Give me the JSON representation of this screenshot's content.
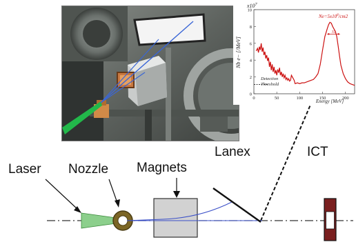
{
  "labels": {
    "laser": "Laser",
    "nozzle": "Nozzle",
    "magnets": "Magnets",
    "lanex": "Lanex",
    "ict": "ICT"
  },
  "inset_chart": {
    "exponent_label": "x10",
    "exponent_power": "7",
    "annotation": "Ne=5x10",
    "annotation_power": "8",
    "annotation_unit": "/cm2",
    "width_label": "32",
    "threshold_label_1": "Detection",
    "threshold_label_2": "Threshold"
  },
  "chart_data": {
    "type": "line",
    "xlabel": "Energy [MeV]",
    "ylabel": "Nb e− [/MeV]",
    "xlim": [
      0,
      220
    ],
    "ylim": [
      0,
      10
    ],
    "x_ticks": [
      "0",
      "50",
      "100",
      "150",
      "200"
    ],
    "y_ticks": [
      "0",
      "2",
      "4",
      "6",
      "8",
      "10"
    ],
    "series": [
      {
        "color": "#cc1010",
        "x": [
          5,
          8,
          10,
          12,
          14,
          16,
          18,
          20,
          22,
          24,
          26,
          28,
          30,
          32,
          34,
          36,
          38,
          40,
          42,
          44,
          46,
          48,
          50,
          52,
          54,
          56,
          58,
          60,
          62,
          64,
          66,
          68,
          70,
          72,
          74,
          76,
          78,
          80,
          82,
          85,
          88,
          90,
          95,
          100,
          105,
          110,
          115,
          120,
          125,
          130,
          135,
          140,
          145,
          150,
          155,
          160,
          163,
          166,
          169,
          172,
          175,
          178,
          181,
          184,
          187,
          190,
          195,
          200,
          205,
          210,
          215,
          220
        ],
        "y": [
          5.1,
          5.4,
          4.9,
          5.6,
          5.2,
          6.0,
          5.0,
          5.5,
          4.6,
          5.0,
          4.2,
          4.6,
          3.9,
          4.3,
          3.2,
          3.8,
          2.8,
          3.5,
          2.6,
          3.2,
          2.4,
          2.8,
          2.2,
          2.9,
          2.5,
          3.1,
          2.2,
          2.6,
          2.0,
          2.4,
          1.9,
          2.2,
          1.7,
          1.9,
          1.6,
          1.8,
          1.5,
          1.6,
          2.2,
          1.9,
          1.6,
          1.2,
          1.3,
          1.2,
          1.3,
          1.3,
          1.4,
          1.5,
          1.6,
          1.7,
          2.0,
          2.4,
          3.5,
          5.2,
          6.8,
          7.7,
          8.2,
          8.5,
          8.4,
          8.0,
          7.7,
          7.4,
          6.8,
          5.7,
          4.5,
          3.4,
          2.4,
          1.8,
          1.4,
          1.2,
          1.1,
          1.0
        ]
      }
    ],
    "threshold_y": 1.1,
    "threshold_xlim": [
      0,
      30
    ]
  }
}
